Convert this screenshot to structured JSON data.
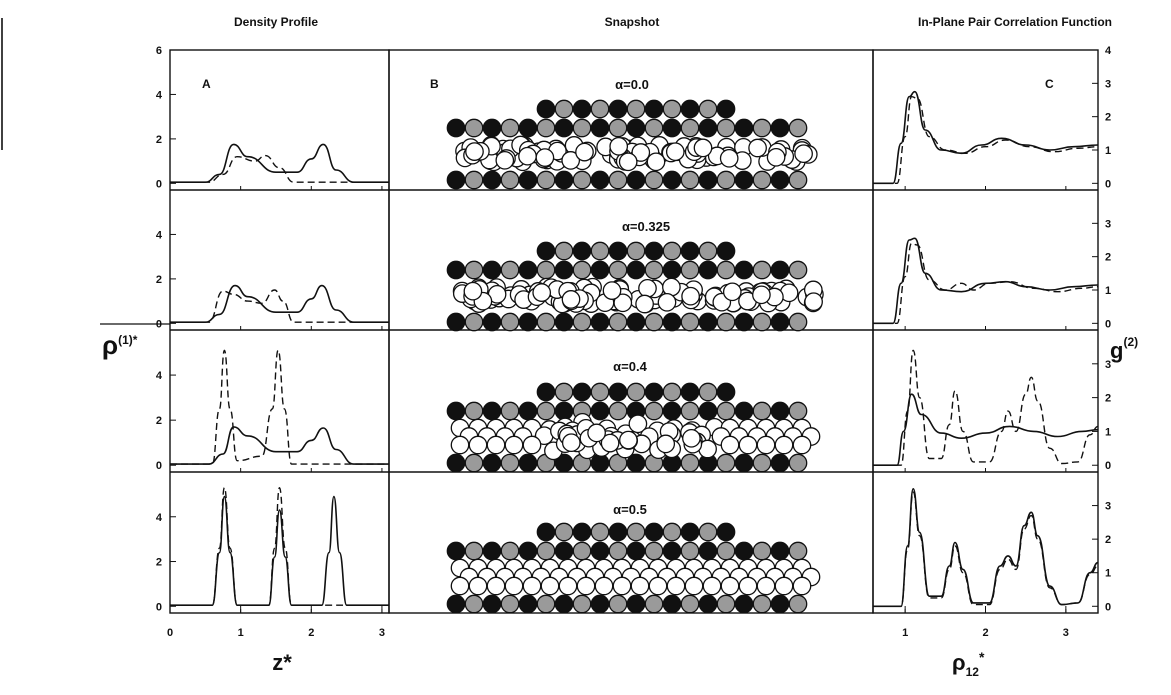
{
  "columns": {
    "density_title": "Density Profile",
    "snapshot_title": "Snapshot",
    "gofr_title": "In-Plane Pair Correlation Function"
  },
  "panel_letters": {
    "a": "A",
    "b": "B",
    "c": "C"
  },
  "axes": {
    "left_ylabel_main": "ρ",
    "left_ylabel_sup": "(1)*",
    "left_xlabel": "z*",
    "right_ylabel_main": "g",
    "right_ylabel_sup": "(2)",
    "right_xlabel_main": "ρ",
    "right_xlabel_sub": "12",
    "right_xlabel_sup": "*"
  },
  "alpha_labels": [
    "α=0.0",
    "α=0.325",
    "α=0.4",
    "α=0.5"
  ],
  "colors": {
    "ink": "#111111",
    "stippled_atom": "#9a9a9a",
    "black_atom": "#111111",
    "white_atom": "#ffffff"
  },
  "chart_data": [
    {
      "type": "line",
      "panel": "A",
      "xlabel": "z*",
      "ylabel": "ρ(1)*",
      "xlim": [
        0,
        3.1
      ],
      "ylim": [
        -0.3,
        6
      ],
      "x_ticks": [
        0,
        1,
        2,
        3
      ],
      "y_ticks_first_row": [
        0,
        2,
        4,
        6
      ],
      "y_ticks": [
        0,
        2,
        4
      ],
      "rows": [
        {
          "alpha": "α=0.0",
          "solid": [
            [
              0,
              0.05
            ],
            [
              0.5,
              0.05
            ],
            [
              0.7,
              0.4
            ],
            [
              0.9,
              1.75
            ],
            [
              1.1,
              1.2
            ],
            [
              1.5,
              0.5
            ],
            [
              1.8,
              0.5
            ],
            [
              2.0,
              1.1
            ],
            [
              2.17,
              1.75
            ],
            [
              2.35,
              0.6
            ],
            [
              2.6,
              0.05
            ],
            [
              3.1,
              0.05
            ]
          ],
          "dashed": [
            [
              0,
              0.05
            ],
            [
              0.55,
              0.05
            ],
            [
              0.75,
              0.4
            ],
            [
              0.95,
              1.2
            ],
            [
              1.2,
              1.0
            ],
            [
              1.35,
              1.25
            ],
            [
              1.55,
              0.7
            ],
            [
              1.75,
              0.05
            ],
            [
              3.1,
              0.05
            ]
          ]
        },
        {
          "alpha": "α=0.325",
          "solid": [
            [
              0,
              0.05
            ],
            [
              0.5,
              0.05
            ],
            [
              0.7,
              0.4
            ],
            [
              0.92,
              1.7
            ],
            [
              1.1,
              1.2
            ],
            [
              1.5,
              0.5
            ],
            [
              1.8,
              0.5
            ],
            [
              2.0,
              1.1
            ],
            [
              2.15,
              1.7
            ],
            [
              2.35,
              0.6
            ],
            [
              2.6,
              0.05
            ],
            [
              3.1,
              0.05
            ]
          ],
          "dashed": [
            [
              0,
              0.05
            ],
            [
              0.55,
              0.05
            ],
            [
              0.75,
              1.45
            ],
            [
              0.9,
              1.3
            ],
            [
              1.1,
              1.0
            ],
            [
              1.3,
              0.9
            ],
            [
              1.48,
              1.5
            ],
            [
              1.6,
              1.0
            ],
            [
              1.75,
              0.05
            ],
            [
              3.1,
              0.05
            ]
          ]
        },
        {
          "alpha": "α=0.4",
          "solid": [
            [
              0,
              0.05
            ],
            [
              0.55,
              0.05
            ],
            [
              0.75,
              0.5
            ],
            [
              0.9,
              1.7
            ],
            [
              1.1,
              1.3
            ],
            [
              1.5,
              0.6
            ],
            [
              1.8,
              0.6
            ],
            [
              2.0,
              1.1
            ],
            [
              2.17,
              1.65
            ],
            [
              2.35,
              0.7
            ],
            [
              2.6,
              0.05
            ],
            [
              3.1,
              0.05
            ]
          ],
          "dashed": [
            [
              0,
              0.05
            ],
            [
              0.6,
              0.05
            ],
            [
              0.7,
              2.5
            ],
            [
              0.77,
              5.1
            ],
            [
              0.85,
              2.5
            ],
            [
              0.95,
              0.2
            ],
            [
              1.3,
              0.4
            ],
            [
              1.45,
              2.5
            ],
            [
              1.53,
              5.1
            ],
            [
              1.62,
              2.5
            ],
            [
              1.72,
              0.05
            ],
            [
              3.1,
              0.05
            ]
          ]
        },
        {
          "alpha": "α=0.5",
          "solid": [
            [
              0,
              0.05
            ],
            [
              0.6,
              0.05
            ],
            [
              0.7,
              2.4
            ],
            [
              0.77,
              4.9
            ],
            [
              0.85,
              2.4
            ],
            [
              0.95,
              0.05
            ],
            [
              1.4,
              0.05
            ],
            [
              1.48,
              2.2
            ],
            [
              1.55,
              4.3
            ],
            [
              1.63,
              2.2
            ],
            [
              1.72,
              0.05
            ],
            [
              2.15,
              0.05
            ],
            [
              2.25,
              2.4
            ],
            [
              2.32,
              4.9
            ],
            [
              2.4,
              2.4
            ],
            [
              2.5,
              0.05
            ],
            [
              3.1,
              0.05
            ]
          ],
          "dashed": [
            [
              0,
              0.05
            ],
            [
              0.6,
              0.05
            ],
            [
              0.7,
              2.6
            ],
            [
              0.77,
              5.3
            ],
            [
              0.85,
              2.6
            ],
            [
              0.95,
              0.05
            ],
            [
              1.4,
              0.05
            ],
            [
              1.48,
              2.6
            ],
            [
              1.55,
              5.3
            ],
            [
              1.63,
              2.6
            ],
            [
              1.72,
              0.05
            ],
            [
              3.1,
              0.05
            ]
          ]
        }
      ]
    },
    {
      "type": "line",
      "panel": "C",
      "xlabel": "ρ12*",
      "ylabel": "g(2)",
      "xlim": [
        0.6,
        3.4
      ],
      "ylim": [
        -0.2,
        4
      ],
      "x_ticks": [
        1,
        2,
        3
      ],
      "y_ticks_first_row": [
        0,
        1,
        2,
        3,
        4
      ],
      "y_ticks": [
        0,
        1,
        2,
        3
      ],
      "rows": [
        {
          "alpha": "α=0.0",
          "solid": [
            [
              0.6,
              0
            ],
            [
              0.85,
              0
            ],
            [
              0.95,
              1.2
            ],
            [
              1.05,
              2.6
            ],
            [
              1.12,
              2.75
            ],
            [
              1.25,
              1.6
            ],
            [
              1.45,
              1.0
            ],
            [
              1.7,
              0.9
            ],
            [
              1.95,
              1.15
            ],
            [
              2.2,
              1.35
            ],
            [
              2.5,
              1.15
            ],
            [
              2.8,
              1.0
            ],
            [
              3.1,
              1.1
            ],
            [
              3.4,
              1.15
            ]
          ],
          "dashed": [
            [
              0.6,
              0
            ],
            [
              0.9,
              0
            ],
            [
              1.0,
              1.4
            ],
            [
              1.08,
              2.6
            ],
            [
              1.15,
              2.55
            ],
            [
              1.3,
              1.4
            ],
            [
              1.5,
              1.0
            ],
            [
              1.75,
              0.9
            ],
            [
              2.0,
              1.1
            ],
            [
              2.25,
              1.3
            ],
            [
              2.55,
              1.1
            ],
            [
              2.85,
              0.95
            ],
            [
              3.15,
              1.05
            ],
            [
              3.4,
              1.1
            ]
          ]
        },
        {
          "alpha": "α=0.325",
          "solid": [
            [
              0.6,
              0
            ],
            [
              0.85,
              0
            ],
            [
              0.95,
              1.2
            ],
            [
              1.05,
              2.5
            ],
            [
              1.12,
              2.55
            ],
            [
              1.25,
              1.5
            ],
            [
              1.45,
              1.0
            ],
            [
              1.7,
              0.95
            ],
            [
              2.0,
              1.2
            ],
            [
              2.25,
              1.25
            ],
            [
              2.5,
              1.1
            ],
            [
              2.8,
              1.0
            ],
            [
              3.1,
              1.1
            ],
            [
              3.4,
              1.15
            ]
          ],
          "dashed": [
            [
              0.6,
              0
            ],
            [
              0.9,
              0
            ],
            [
              1.0,
              1.4
            ],
            [
              1.08,
              2.4
            ],
            [
              1.15,
              2.35
            ],
            [
              1.3,
              1.3
            ],
            [
              1.5,
              1.0
            ],
            [
              1.7,
              1.2
            ],
            [
              1.85,
              1.0
            ],
            [
              2.05,
              1.2
            ],
            [
              2.3,
              1.25
            ],
            [
              2.6,
              1.05
            ],
            [
              2.9,
              0.95
            ],
            [
              3.2,
              1.05
            ],
            [
              3.4,
              1.1
            ]
          ]
        },
        {
          "alpha": "α=0.4",
          "solid": [
            [
              0.6,
              0
            ],
            [
              0.9,
              0
            ],
            [
              0.98,
              1.0
            ],
            [
              1.08,
              2.1
            ],
            [
              1.2,
              1.5
            ],
            [
              1.45,
              0.95
            ],
            [
              1.7,
              0.8
            ],
            [
              2.0,
              0.95
            ],
            [
              2.3,
              1.15
            ],
            [
              2.6,
              1.0
            ],
            [
              2.9,
              0.85
            ],
            [
              3.2,
              1.0
            ],
            [
              3.4,
              1.05
            ]
          ],
          "dashed": [
            [
              0.6,
              0
            ],
            [
              0.95,
              0
            ],
            [
              1.03,
              1.6
            ],
            [
              1.1,
              3.4
            ],
            [
              1.18,
              2.0
            ],
            [
              1.3,
              0.2
            ],
            [
              1.45,
              0.2
            ],
            [
              1.55,
              1.2
            ],
            [
              1.62,
              2.2
            ],
            [
              1.72,
              1.0
            ],
            [
              1.85,
              0.1
            ],
            [
              2.05,
              0.1
            ],
            [
              2.2,
              1.0
            ],
            [
              2.28,
              1.6
            ],
            [
              2.38,
              1.0
            ],
            [
              2.5,
              2.1
            ],
            [
              2.57,
              2.6
            ],
            [
              2.65,
              1.9
            ],
            [
              2.8,
              0.5
            ],
            [
              2.95,
              0.05
            ],
            [
              3.15,
              0.1
            ],
            [
              3.3,
              0.9
            ],
            [
              3.4,
              1.15
            ]
          ]
        },
        {
          "alpha": "α=0.5",
          "solid": [
            [
              0.6,
              0
            ],
            [
              0.95,
              0
            ],
            [
              1.03,
              1.8
            ],
            [
              1.1,
              3.5
            ],
            [
              1.18,
              2.2
            ],
            [
              1.3,
              0.3
            ],
            [
              1.45,
              0.3
            ],
            [
              1.55,
              1.2
            ],
            [
              1.62,
              1.9
            ],
            [
              1.72,
              1.1
            ],
            [
              1.85,
              0.1
            ],
            [
              2.05,
              0.1
            ],
            [
              2.18,
              1.2
            ],
            [
              2.28,
              1.5
            ],
            [
              2.38,
              1.2
            ],
            [
              2.48,
              2.4
            ],
            [
              2.57,
              2.8
            ],
            [
              2.65,
              2.1
            ],
            [
              2.8,
              0.6
            ],
            [
              2.95,
              0.05
            ],
            [
              3.15,
              0.1
            ],
            [
              3.3,
              1.0
            ],
            [
              3.4,
              1.3
            ]
          ],
          "dashed": [
            [
              0.6,
              0
            ],
            [
              0.95,
              0
            ],
            [
              1.03,
              1.7
            ],
            [
              1.1,
              3.4
            ],
            [
              1.18,
              2.1
            ],
            [
              1.3,
              0.25
            ],
            [
              1.45,
              0.25
            ],
            [
              1.55,
              1.1
            ],
            [
              1.62,
              1.8
            ],
            [
              1.72,
              1.0
            ],
            [
              1.85,
              0.05
            ],
            [
              2.05,
              0.05
            ],
            [
              2.18,
              1.1
            ],
            [
              2.28,
              1.4
            ],
            [
              2.38,
              1.1
            ],
            [
              2.48,
              2.3
            ],
            [
              2.57,
              2.7
            ],
            [
              2.65,
              2.0
            ],
            [
              2.8,
              0.55
            ],
            [
              2.95,
              0.05
            ],
            [
              3.15,
              0.1
            ],
            [
              3.3,
              0.95
            ],
            [
              3.4,
              1.2
            ]
          ]
        }
      ]
    }
  ]
}
